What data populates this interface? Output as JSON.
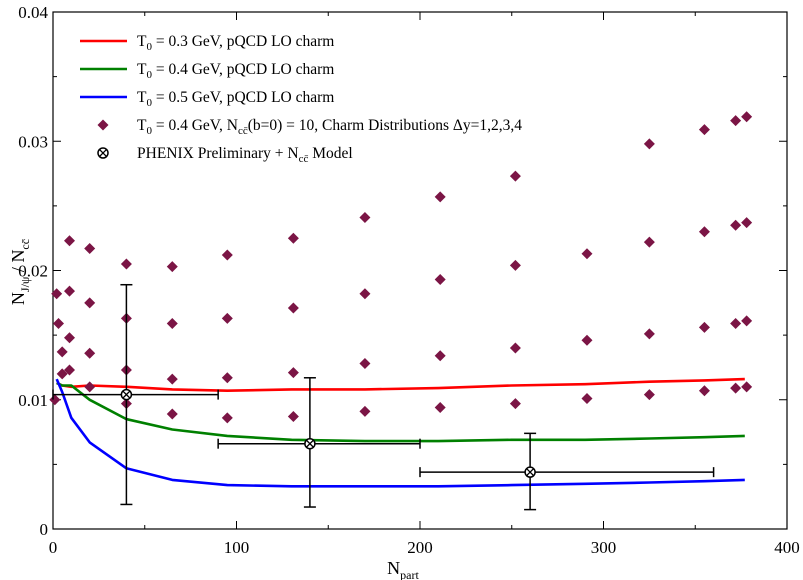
{
  "chart_data": {
    "type": "line",
    "xlabel": "N",
    "xlabel_sub": "part",
    "ylabel": "N_{J/ψ} / N_{cc̄}",
    "xlim": [
      0,
      400
    ],
    "ylim": [
      0,
      0.04
    ],
    "xticks": [
      "0",
      "100",
      "200",
      "300",
      "400"
    ],
    "yticks": [
      "0",
      "0.01",
      "0.02",
      "0.03",
      "0.04"
    ],
    "grid": false,
    "legend_position": "top-left",
    "series": [
      {
        "name": "T0 = 0.3 GeV, pQCD LO charm",
        "legend": {
          "pre": "T",
          "sub": "0",
          "post": " = 0.3 GeV, pQCD LO charm"
        },
        "color": "#ff0000",
        "style": "line",
        "x": [
          2,
          5,
          10,
          20,
          40,
          65,
          95,
          130,
          170,
          210,
          250,
          290,
          325,
          355,
          377
        ],
        "y": [
          0.0113,
          0.0111,
          0.011,
          0.0111,
          0.011,
          0.0108,
          0.0107,
          0.0108,
          0.0108,
          0.0109,
          0.0111,
          0.0112,
          0.0114,
          0.0115,
          0.0116
        ]
      },
      {
        "name": "T0 = 0.4 GeV, pQCD LO charm",
        "legend": {
          "pre": "T",
          "sub": "0",
          "post": " = 0.4 GeV, pQCD LO charm"
        },
        "color": "#008000",
        "style": "line",
        "x": [
          2,
          5,
          10,
          20,
          40,
          65,
          95,
          130,
          170,
          210,
          250,
          290,
          325,
          355,
          377
        ],
        "y": [
          0.0113,
          0.0111,
          0.0111,
          0.01,
          0.0085,
          0.0077,
          0.0072,
          0.0069,
          0.0068,
          0.0068,
          0.0069,
          0.0069,
          0.007,
          0.0071,
          0.0072
        ]
      },
      {
        "name": "T0 = 0.5 GeV, pQCD LO charm",
        "legend": {
          "pre": "T",
          "sub": "0",
          "post": " = 0.5 GeV, pQCD LO charm"
        },
        "color": "#0000ff",
        "style": "line",
        "x": [
          2,
          5,
          10,
          20,
          40,
          65,
          95,
          130,
          170,
          210,
          250,
          290,
          325,
          355,
          377
        ],
        "y": [
          0.0116,
          0.0106,
          0.0086,
          0.0067,
          0.0047,
          0.0038,
          0.0034,
          0.0033,
          0.0033,
          0.0033,
          0.0034,
          0.0035,
          0.0036,
          0.0037,
          0.0038
        ]
      },
      {
        "name": "T0 = 0.4 GeV, Ncc(b=0) = 10, Charm Distributions Δy=1,2,3,4",
        "legend": {
          "pre": "T",
          "sub": "0",
          "mid": " = 0.4 GeV, N",
          "sub2": "cc̄",
          "post": "(b=0) = 10, Charm Distributions  Δy=1,2,3,4"
        },
        "color": "#7b1545",
        "style": "diamond",
        "x": [
          1,
          2,
          3,
          5,
          5,
          9,
          9,
          9,
          9,
          20,
          20,
          20,
          20,
          40,
          40,
          40,
          40,
          65,
          65,
          65,
          65,
          95,
          95,
          95,
          95,
          131,
          131,
          131,
          131,
          170,
          170,
          170,
          170,
          211,
          211,
          211,
          211,
          252,
          252,
          252,
          252,
          291,
          291,
          291,
          325,
          325,
          325,
          325,
          355,
          355,
          355,
          355,
          372,
          372,
          372,
          372,
          378,
          378,
          378,
          378
        ],
        "y": [
          0.01,
          0.0182,
          0.0159,
          0.0137,
          0.012,
          0.0223,
          0.0184,
          0.0148,
          0.0123,
          0.0217,
          0.0175,
          0.0136,
          0.011,
          0.0205,
          0.0163,
          0.0123,
          0.0097,
          0.0203,
          0.0159,
          0.0116,
          0.0089,
          0.0212,
          0.0163,
          0.0117,
          0.0086,
          0.0225,
          0.0171,
          0.0121,
          0.0087,
          0.0241,
          0.0182,
          0.0128,
          0.0091,
          0.0257,
          0.0193,
          0.0134,
          0.0094,
          0.0273,
          0.0204,
          0.014,
          0.0097,
          0.0213,
          0.0146,
          0.0101,
          0.0298,
          0.0222,
          0.0151,
          0.0104,
          0.0309,
          0.023,
          0.0156,
          0.0107,
          0.0316,
          0.0235,
          0.0159,
          0.0109,
          0.0319,
          0.0237,
          0.0161,
          0.011
        ]
      },
      {
        "name": "PHENIX Preliminary + Ncc Model",
        "legend": {
          "pre": "PHENIX Preliminary + N",
          "sub": "cc̄",
          "post": " Model"
        },
        "color": "#000000",
        "style": "errorbar",
        "points": [
          {
            "x": 40,
            "y": 0.0104,
            "xerr": [
              0,
              90
            ],
            "yerr": [
              0.0019,
              0.0189
            ]
          },
          {
            "x": 140,
            "y": 0.0066,
            "xerr": [
              90,
              200
            ],
            "yerr": [
              0.0017,
              0.0117
            ]
          },
          {
            "x": 260,
            "y": 0.0044,
            "xerr": [
              200,
              360
            ],
            "yerr": [
              0.0015,
              0.0074
            ]
          }
        ]
      }
    ]
  }
}
